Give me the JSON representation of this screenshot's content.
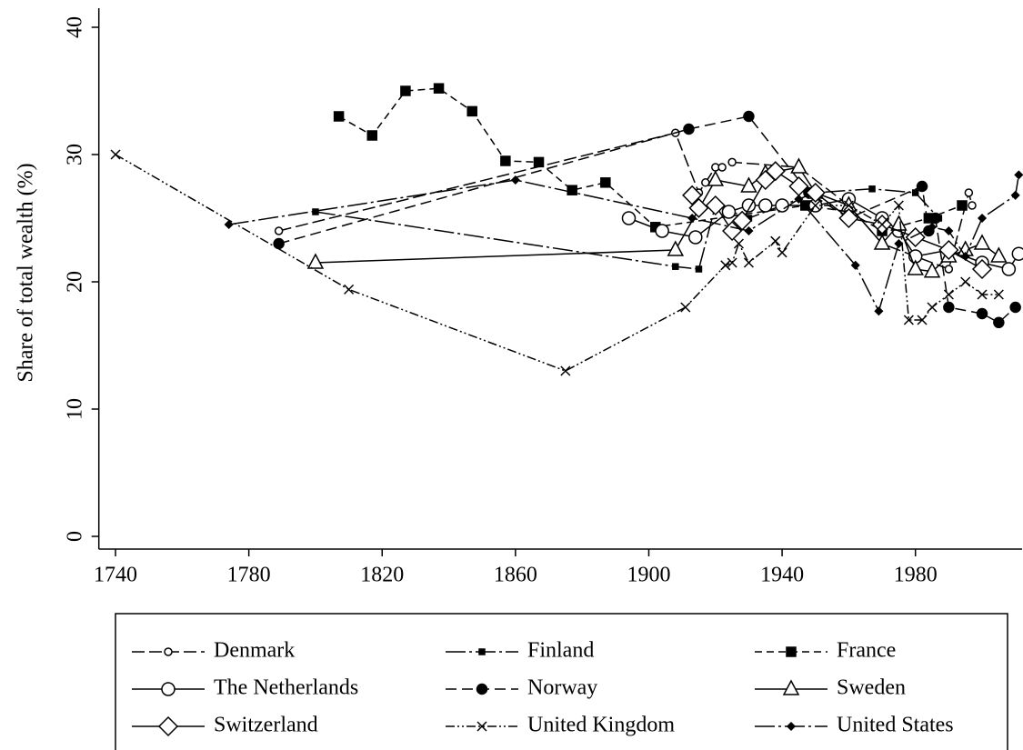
{
  "chart_data": {
    "type": "line",
    "ylabel": "Share of total wealth (%)",
    "xlim": [
      1735,
      2012
    ],
    "xticks": [
      1740,
      1780,
      1820,
      1860,
      1900,
      1940,
      1980
    ],
    "ylim": [
      -1,
      41.5
    ],
    "yticks": [
      0,
      10,
      20,
      30,
      40
    ],
    "series": [
      {
        "name": "Denmark",
        "color": "#000",
        "dash": "14,5",
        "marker": "circle-small",
        "x": [
          1789,
          1908,
          1915,
          1917,
          1920,
          1922,
          1925,
          1945,
          1960,
          1970,
          1980,
          1990,
          1996,
          1997
        ],
        "values": [
          24,
          31.7,
          27,
          27.8,
          29,
          29,
          29.4,
          29,
          26,
          23,
          22,
          21,
          27,
          26
        ]
      },
      {
        "name": "Finland",
        "color": "#000",
        "dash": "22,4,3,4",
        "marker": "square-small",
        "x": [
          1800,
          1908,
          1915,
          1920,
          1930,
          1950,
          1967,
          1980,
          1987
        ],
        "values": [
          25.5,
          21.2,
          21,
          26,
          25,
          27,
          27.3,
          27,
          25
        ]
      },
      {
        "name": "France",
        "color": "#000",
        "dash": "8,5",
        "marker": "square",
        "x": [
          1807,
          1817,
          1827,
          1837,
          1847,
          1857,
          1867,
          1877,
          1887,
          1902,
          1947,
          1960,
          1970,
          1984,
          1994
        ],
        "values": [
          33,
          31.5,
          35,
          35.2,
          33.4,
          29.5,
          29.4,
          27.2,
          27.8,
          24.3,
          26,
          25.5,
          24,
          25,
          26
        ]
      },
      {
        "name": "The Netherlands",
        "color": "#000",
        "dash": "",
        "marker": "circle",
        "x": [
          1894,
          1904,
          1914,
          1924,
          1930,
          1935,
          1940,
          1950,
          1960,
          1970,
          1975,
          1980,
          1990,
          2000,
          2008,
          2011
        ],
        "values": [
          25,
          24,
          23.5,
          25.5,
          26,
          26,
          26,
          26,
          26.5,
          25,
          24,
          22,
          22.5,
          21.5,
          21,
          22.2
        ]
      },
      {
        "name": "Norway",
        "color": "#000",
        "dash": "12,6",
        "marker": "dot",
        "x": [
          1789,
          1912,
          1930,
          1948,
          1960,
          1982,
          1984,
          1986,
          1990,
          2000,
          2005,
          2010
        ],
        "values": [
          23,
          32,
          33,
          27,
          25,
          27.5,
          24,
          25,
          18,
          17.5,
          16.8,
          18
        ]
      },
      {
        "name": "Sweden",
        "color": "#000",
        "dash": "",
        "marker": "triangle",
        "x": [
          1800,
          1908,
          1920,
          1930,
          1935,
          1945,
          1950,
          1960,
          1970,
          1975,
          1980,
          1985,
          1990,
          1995,
          2000,
          2005
        ],
        "values": [
          21.5,
          22.5,
          28,
          27.5,
          28.5,
          29,
          27,
          26,
          23,
          24.5,
          21,
          20.8,
          22,
          22.5,
          23,
          22
        ]
      },
      {
        "name": "Switzerland",
        "color": "#000",
        "dash": "",
        "marker": "diamond",
        "x": [
          1913,
          1915,
          1920,
          1925,
          1928,
          1935,
          1938,
          1945,
          1950,
          1960,
          1970,
          1980,
          1990,
          2000
        ],
        "values": [
          26.8,
          25.8,
          26,
          24,
          24.8,
          28,
          28.7,
          27.5,
          27,
          25,
          24.5,
          23.5,
          22.5,
          21
        ]
      },
      {
        "name": "United Kingdom",
        "color": "#000",
        "dash": "10,3,2,3,2,3",
        "marker": "x",
        "x": [
          1740,
          1810,
          1875,
          1911,
          1923,
          1925,
          1927,
          1930,
          1938,
          1940,
          1950,
          1960,
          1970,
          1975,
          1978,
          1982,
          1985,
          1990,
          1995,
          2000,
          2005
        ],
        "values": [
          30,
          19.4,
          13,
          18,
          21.3,
          21.5,
          23,
          21.5,
          23.2,
          22.3,
          26,
          26,
          24.5,
          26,
          17,
          17,
          18,
          19,
          20,
          19,
          19
        ]
      },
      {
        "name": "United States",
        "color": "#000",
        "dash": "22,4,3,4",
        "marker": "diamond-small",
        "x": [
          1774,
          1860,
          1913,
          1930,
          1945,
          1962,
          1969,
          1975,
          1985,
          1990,
          1995,
          2000,
          2010,
          2011
        ],
        "values": [
          24.5,
          28,
          25,
          24,
          26.5,
          21.3,
          17.7,
          23,
          24.3,
          24,
          22,
          25,
          26.8,
          28.4
        ]
      }
    ]
  }
}
